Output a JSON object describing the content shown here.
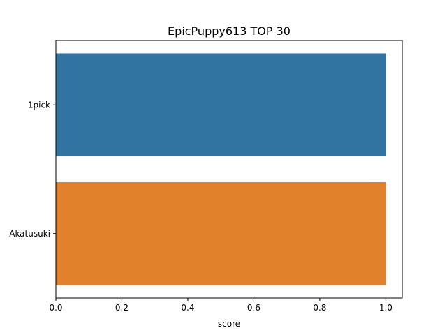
{
  "chart_data": {
    "type": "bar",
    "orientation": "horizontal",
    "title": "EpicPuppy613 TOP 30",
    "xlabel": "score",
    "ylabel": "",
    "categories": [
      "1pick",
      "Akatusuki"
    ],
    "values": [
      1.0,
      1.0
    ],
    "colors": [
      "#3274a1",
      "#e1812c"
    ],
    "xlim": [
      0,
      1.05
    ],
    "xticks": [
      "0.0",
      "0.2",
      "0.4",
      "0.6",
      "0.8",
      "1.0"
    ],
    "grid": false,
    "legend": "none"
  }
}
